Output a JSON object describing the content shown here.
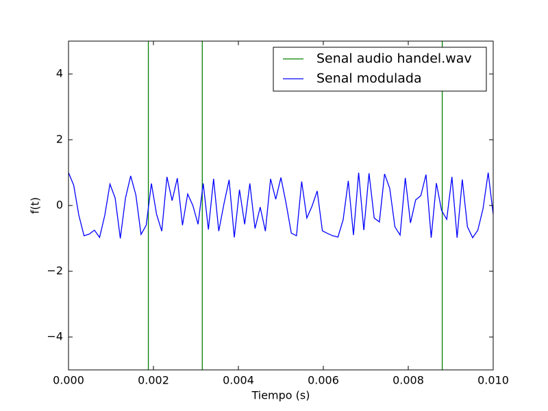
{
  "chart_data": {
    "type": "line",
    "xlabel": "Tiempo (s)",
    "ylabel": "f(t)",
    "xlim": [
      0,
      0.01
    ],
    "ylim": [
      -5,
      5
    ],
    "xticks": [
      {
        "value": 0,
        "label": "0.000"
      },
      {
        "value": 0.002,
        "label": "0.002"
      },
      {
        "value": 0.004,
        "label": "0.004"
      },
      {
        "value": 0.006,
        "label": "0.006"
      },
      {
        "value": 0.008,
        "label": "0.008"
      },
      {
        "value": 0.01,
        "label": "0.010"
      }
    ],
    "yticks": [
      {
        "value": -4,
        "label": "−4"
      },
      {
        "value": -2,
        "label": "−2"
      },
      0,
      2,
      4
    ],
    "legend": "upper right",
    "series": [
      {
        "name": "Senal audio handel.wav",
        "color": "#008000",
        "x": [
          0,
          0.00188,
          0.00188,
          0.00315,
          0.00315,
          0.0088,
          0.0088,
          0.01
        ],
        "values": [
          -6,
          -6,
          6,
          6,
          -6,
          -6,
          6,
          6
        ]
      },
      {
        "name": "Senal modulada",
        "color": "#0000ff",
        "x": [
          0,
          0.000122,
          0.000244,
          0.000366,
          0.000488,
          0.00061,
          0.000732,
          0.000854,
          0.000976,
          0.001098,
          0.00122,
          0.001342,
          0.001464,
          0.001586,
          0.001708,
          0.00183,
          0.001952,
          0.002074,
          0.002196,
          0.002318,
          0.00244,
          0.002562,
          0.002684,
          0.002806,
          0.002928,
          0.00305,
          0.003172,
          0.003294,
          0.003416,
          0.003538,
          0.00366,
          0.003782,
          0.003904,
          0.004026,
          0.004148,
          0.00427,
          0.004392,
          0.004514,
          0.004636,
          0.004758,
          0.00488,
          0.005002,
          0.005124,
          0.005246,
          0.005368,
          0.00549,
          0.005612,
          0.005734,
          0.005856,
          0.005978,
          0.0061,
          0.006222,
          0.006344,
          0.006466,
          0.006588,
          0.00671,
          0.006832,
          0.006954,
          0.007076,
          0.007198,
          0.00732,
          0.007442,
          0.007564,
          0.007686,
          0.007808,
          0.00793,
          0.008052,
          0.008174,
          0.008296,
          0.008418,
          0.00854,
          0.008662,
          0.008784,
          0.008906,
          0.009028,
          0.00915,
          0.009272,
          0.009394,
          0.009516,
          0.009638,
          0.00976,
          0.009882,
          0.01
        ],
        "values": [
          1.0,
          0.62,
          -0.3,
          -0.92,
          -0.87,
          -0.75,
          -0.97,
          -0.3,
          0.65,
          0.23,
          -1.0,
          0.23,
          0.9,
          0.32,
          -0.88,
          -0.6,
          0.67,
          -0.27,
          -0.78,
          0.87,
          0.15,
          0.83,
          -0.6,
          0.35,
          0,
          -0.57,
          0.67,
          -0.73,
          0.81,
          -0.78,
          0.05,
          0.78,
          -0.97,
          0.48,
          -0.57,
          0.67,
          -0.7,
          -0.05,
          -0.78,
          0.81,
          0.19,
          0.85,
          0.06,
          -0.84,
          -0.92,
          0.73,
          -0.38,
          -0.02,
          0.44,
          -0.77,
          -0.85,
          -0.92,
          -0.96,
          -0.44,
          0.75,
          -0.9,
          1.0,
          -0.75,
          0.98,
          -0.38,
          -0.5,
          0.96,
          0.52,
          -0.65,
          -0.9,
          0.84,
          -0.53,
          0.17,
          0.3,
          0.94,
          -0.98,
          0.68,
          -0.15,
          -0.42,
          0.87,
          -0.98,
          0.79,
          -0.65,
          -0.98,
          -0.75,
          -0.1,
          1.0,
          -0.27
        ]
      }
    ]
  }
}
